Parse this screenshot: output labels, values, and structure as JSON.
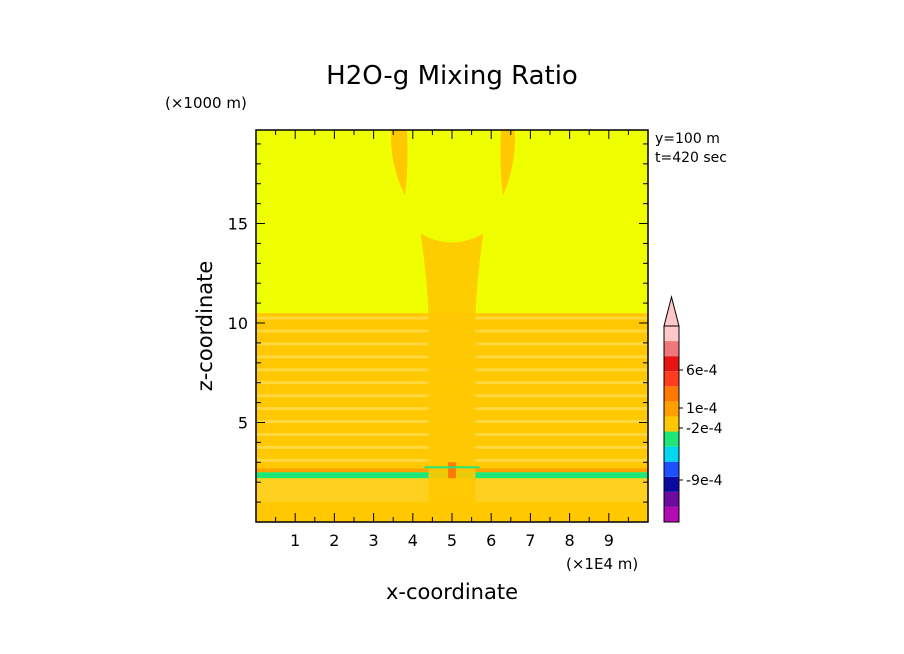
{
  "chart_data": {
    "type": "heatmap",
    "title": "H2O-g Mixing Ratio",
    "xlabel": "x-coordinate",
    "ylabel": "z-coordinate",
    "x_unit": "(×1E4 m)",
    "y_unit": "(×1000 m)",
    "x_ticks": [
      1,
      2,
      3,
      4,
      5,
      6,
      7,
      8,
      9
    ],
    "y_ticks": [
      5,
      10,
      15
    ],
    "xlim": [
      0,
      10
    ],
    "ylim": [
      0,
      19.7
    ],
    "annotations": [
      "y=100 m",
      "t=420 sec"
    ],
    "colorbar": {
      "colors": [
        "#b40ab4",
        "#6e0aa0",
        "#0a0aa0",
        "#1e50ff",
        "#00d7f0",
        "#1ee678",
        "#ffc800",
        "#ffa000",
        "#ff7800",
        "#ff3c1e",
        "#e61414",
        "#f07878",
        "#ffc8c8"
      ],
      "tick_labels": [
        "6e-4",
        "1e-4",
        "-2e-4",
        "-9e-4"
      ],
      "tick_values": [
        0.0006,
        0.0001,
        -0.0002,
        -0.0009
      ],
      "extend": "max"
    },
    "field": {
      "background_color": "#f0ff00",
      "features": [
        {
          "name": "lower-band-1",
          "z": [
            0,
            1.0
          ],
          "color": "#ffc800"
        },
        {
          "name": "lower-band-2",
          "z": [
            2.2,
            2.5
          ],
          "color": "#1ee678"
        },
        {
          "name": "lower-band-3",
          "z": [
            2.5,
            2.7
          ],
          "color": "#ffa000"
        },
        {
          "name": "striated-layer",
          "z": [
            2.7,
            10.5
          ],
          "color": "#ffc800"
        },
        {
          "name": "central-column",
          "x": [
            4.2,
            5.8
          ],
          "z": [
            0,
            14.5
          ],
          "color": "#ffc800"
        },
        {
          "name": "upper-plume-left",
          "x": [
            3.4,
            3.9
          ],
          "z": [
            16.5,
            19.7
          ],
          "color": "#ffc800"
        },
        {
          "name": "upper-plume-right",
          "x": [
            6.2,
            6.6
          ],
          "z": [
            16.5,
            19.7
          ],
          "color": "#ffc800"
        }
      ]
    }
  }
}
